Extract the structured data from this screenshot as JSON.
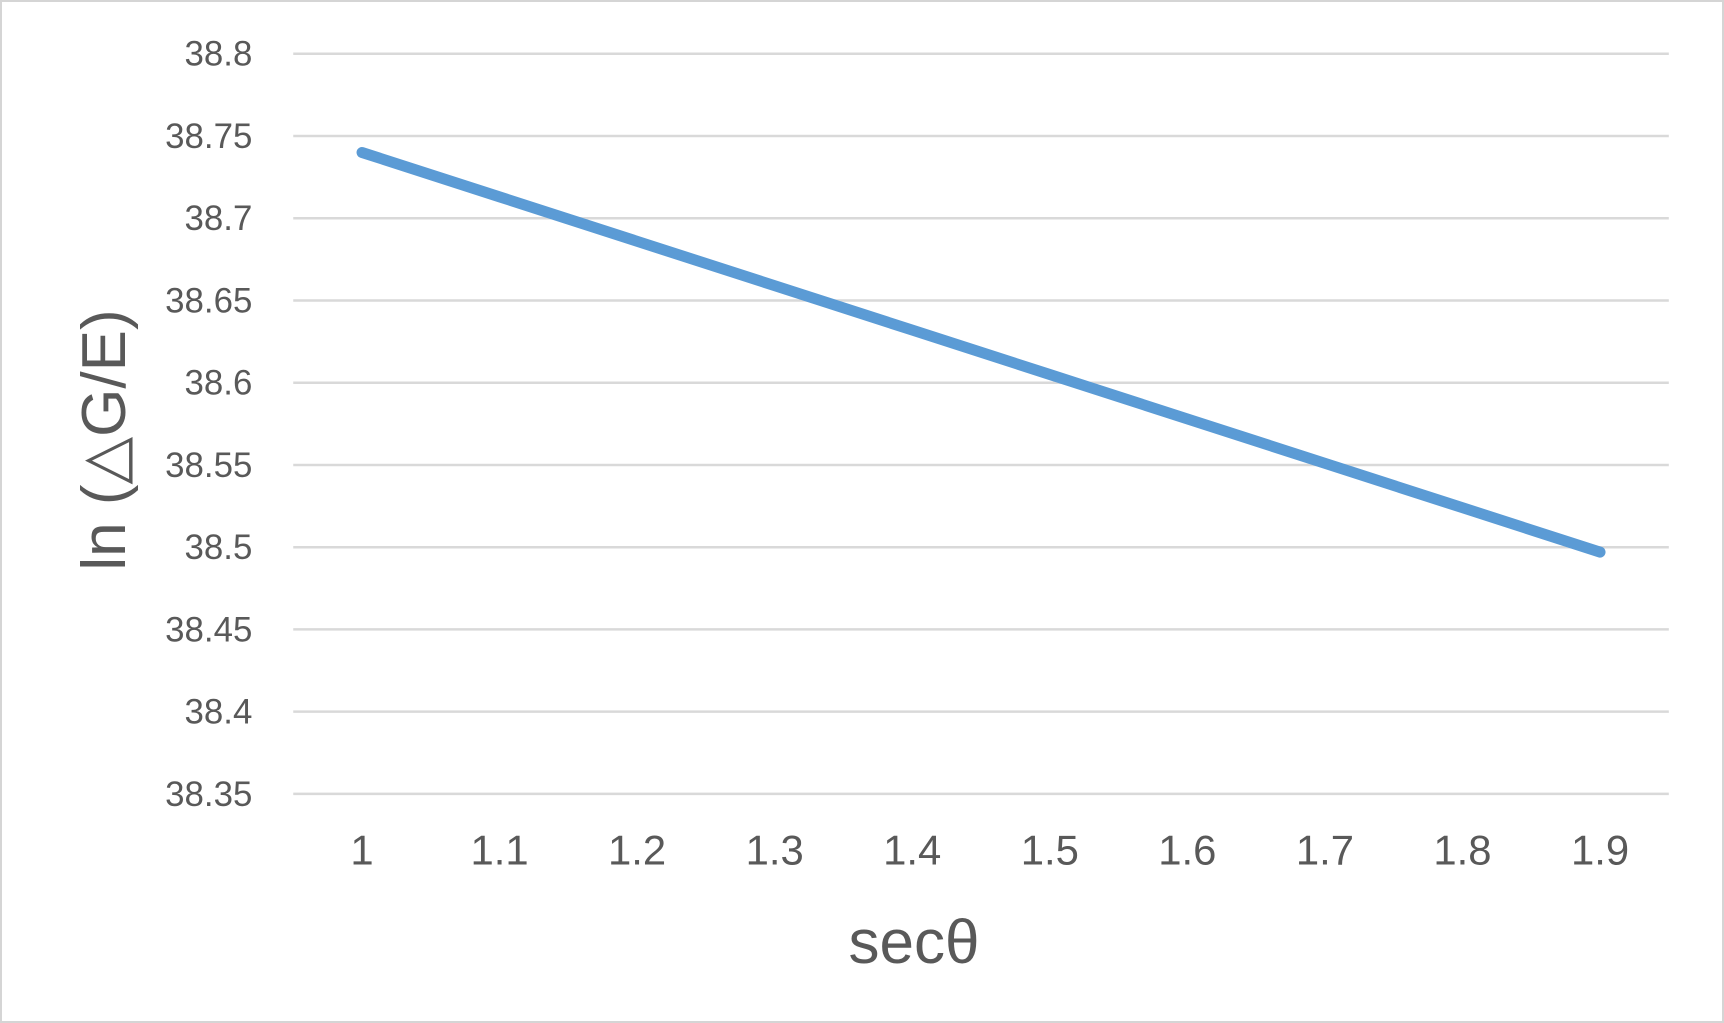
{
  "chart_data": {
    "type": "line",
    "title": "",
    "xlabel": "secθ",
    "ylabel": "ln (△G/E)",
    "x_categories": [
      "1",
      "1.1",
      "1.2",
      "1.3",
      "1.4",
      "1.5",
      "1.6",
      "1.7",
      "1.8",
      "1.9"
    ],
    "series": [
      {
        "values": [
          38.74,
          38.713,
          38.686,
          38.659,
          38.632,
          38.605,
          38.578,
          38.551,
          38.524,
          38.497
        ],
        "color": "#5B9BD5",
        "marker": "none"
      }
    ],
    "ylim": [
      38.35,
      38.8
    ],
    "y_ticks": [
      "38.35",
      "38.4",
      "38.45",
      "38.5",
      "38.55",
      "38.6",
      "38.65",
      "38.7",
      "38.75",
      "38.8"
    ],
    "y_tick_step": 0.05,
    "grid": "horizontal-only",
    "legend": "none"
  },
  "colors": {
    "background": "#FFFFFF",
    "frame_border": "#D5D5D5",
    "gridline": "#D9D9D9",
    "axis_text": "#595959",
    "series_line": "#5B9BD5"
  }
}
